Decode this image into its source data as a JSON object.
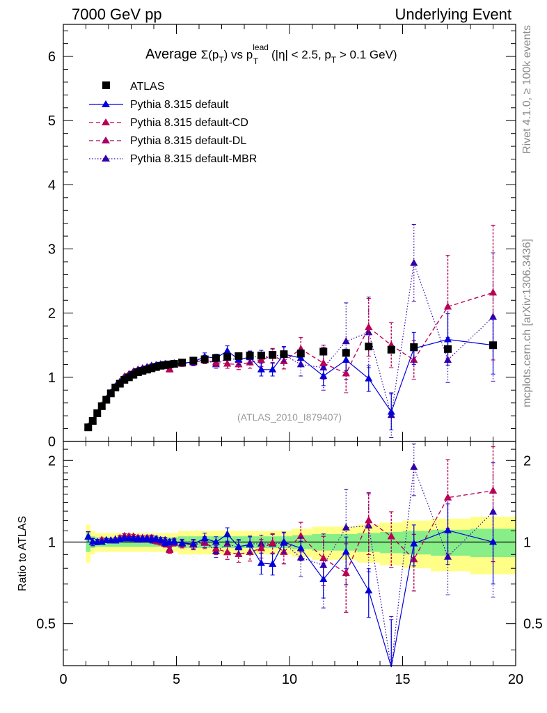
{
  "header": {
    "left": "7000 GeV pp",
    "right": "Underlying Event"
  },
  "side": {
    "rivet": "Rivet 4.1.0, ≥ 100k events",
    "mcplots": "mcplots.cern.ch [arXiv:1306.3436]"
  },
  "title": {
    "prefix": "Average ",
    "sigma": "Σ(p",
    "sigma_sub": "T",
    "sigma_close": ")",
    "vs": " vs p",
    "lead_sup": "lead",
    "lead_sub": "T",
    "cuts_a": " (|η| < 2.5, p",
    "cuts_sub": "T",
    "cuts_b": " > 0.1 GeV)"
  },
  "watermark": "(ATLAS_2010_I879407)",
  "ratio_ylabel": "Ratio to ATLAS",
  "colors": {
    "atlas": "#000000",
    "default": "#0000dd",
    "cd": "#bb0055",
    "dl": "#aa0066",
    "mbr": "#3300aa",
    "band_outer": "#ffff88",
    "band_inner": "#88ee88"
  },
  "chart_data": {
    "type": "scatter",
    "xlim": [
      0,
      20
    ],
    "xticks": [
      "0",
      "5",
      "10",
      "15",
      "20"
    ],
    "main": {
      "ylim": [
        0,
        6.5
      ],
      "yticks": [
        "0",
        "1",
        "2",
        "3",
        "4",
        "5",
        "6"
      ]
    },
    "ratio": {
      "ylim": [
        0.35,
        2.35
      ],
      "yticks": [
        "0.5",
        "1",
        "2"
      ]
    },
    "legend": [
      "ATLAS",
      "Pythia 8.315 default",
      "Pythia 8.315 default-CD",
      "Pythia 8.315 default-DL",
      "Pythia 8.315 default-MBR"
    ],
    "x": [
      1.1,
      1.3,
      1.5,
      1.7,
      1.9,
      2.1,
      2.3,
      2.5,
      2.7,
      2.9,
      3.1,
      3.3,
      3.5,
      3.7,
      3.9,
      4.1,
      4.3,
      4.5,
      4.7,
      4.9,
      5.25,
      5.75,
      6.25,
      6.75,
      7.25,
      7.75,
      8.25,
      8.75,
      9.25,
      9.75,
      10.5,
      11.5,
      12.5,
      13.5,
      14.5,
      15.5,
      17.0,
      19.0
    ],
    "atlas": [
      0.22,
      0.32,
      0.44,
      0.55,
      0.65,
      0.75,
      0.84,
      0.9,
      0.96,
      1.0,
      1.04,
      1.08,
      1.1,
      1.12,
      1.14,
      1.16,
      1.18,
      1.19,
      1.2,
      1.21,
      1.23,
      1.26,
      1.28,
      1.3,
      1.32,
      1.33,
      1.34,
      1.34,
      1.35,
      1.36,
      1.37,
      1.4,
      1.38,
      1.48,
      1.43,
      1.47,
      1.44,
      1.5
    ],
    "atlas_band": [
      0.08,
      0.05,
      0.04,
      0.04,
      0.04,
      0.04,
      0.04,
      0.04,
      0.04,
      0.04,
      0.04,
      0.04,
      0.04,
      0.04,
      0.04,
      0.04,
      0.04,
      0.04,
      0.04,
      0.04,
      0.05,
      0.05,
      0.05,
      0.05,
      0.05,
      0.05,
      0.05,
      0.05,
      0.05,
      0.05,
      0.06,
      0.07,
      0.07,
      0.08,
      0.09,
      0.1,
      0.11,
      0.12
    ],
    "series": [
      {
        "name": "Pythia 8.315 default",
        "values": [
          0.23,
          0.32,
          0.44,
          0.55,
          0.66,
          0.76,
          0.85,
          0.92,
          0.99,
          1.03,
          1.07,
          1.11,
          1.13,
          1.15,
          1.17,
          1.19,
          1.2,
          1.18,
          1.2,
          1.21,
          1.22,
          1.24,
          1.32,
          1.3,
          1.41,
          1.28,
          1.31,
          1.12,
          1.12,
          1.36,
          1.3,
          1.02,
          1.27,
          0.98,
          0.46,
          1.45,
          1.59,
          1.5
        ],
        "errors": [
          0.01,
          0.01,
          0.01,
          0.01,
          0.01,
          0.01,
          0.01,
          0.02,
          0.02,
          0.02,
          0.02,
          0.02,
          0.02,
          0.02,
          0.03,
          0.03,
          0.03,
          0.03,
          0.03,
          0.03,
          0.04,
          0.05,
          0.06,
          0.06,
          0.08,
          0.08,
          0.09,
          0.1,
          0.1,
          0.12,
          0.13,
          0.15,
          0.17,
          0.2,
          0.28,
          0.25,
          0.4,
          0.45
        ]
      },
      {
        "name": "Pythia 8.315 default-CD",
        "values": [
          0.23,
          0.32,
          0.44,
          0.56,
          0.66,
          0.76,
          0.85,
          0.93,
          1.01,
          1.05,
          1.09,
          1.12,
          1.14,
          1.16,
          1.18,
          1.17,
          1.18,
          1.17,
          1.12,
          1.2,
          1.21,
          1.23,
          1.27,
          1.23,
          1.21,
          1.2,
          1.23,
          1.27,
          1.34,
          1.25,
          1.44,
          1.22,
          1.06,
          1.78,
          1.5,
          1.27,
          2.1,
          2.32
        ],
        "errors": [
          0.01,
          0.01,
          0.01,
          0.01,
          0.01,
          0.01,
          0.01,
          0.02,
          0.02,
          0.02,
          0.02,
          0.02,
          0.02,
          0.02,
          0.03,
          0.03,
          0.03,
          0.03,
          0.03,
          0.03,
          0.04,
          0.05,
          0.06,
          0.06,
          0.07,
          0.08,
          0.09,
          0.1,
          0.11,
          0.12,
          0.18,
          0.25,
          0.3,
          0.45,
          0.35,
          0.3,
          0.8,
          1.05
        ]
      },
      {
        "name": "Pythia 8.315 default-DL",
        "values": [
          0.23,
          0.32,
          0.44,
          0.56,
          0.66,
          0.76,
          0.85,
          0.93,
          1.01,
          1.05,
          1.09,
          1.12,
          1.14,
          1.16,
          1.18,
          1.17,
          1.18,
          1.17,
          1.12,
          1.2,
          1.21,
          1.23,
          1.27,
          1.23,
          1.21,
          1.2,
          1.23,
          1.27,
          1.34,
          1.25,
          1.44,
          1.22,
          1.06,
          1.78,
          1.5,
          1.27,
          2.1,
          2.32
        ],
        "errors": [
          0.01,
          0.01,
          0.01,
          0.01,
          0.01,
          0.01,
          0.01,
          0.02,
          0.02,
          0.02,
          0.02,
          0.02,
          0.02,
          0.02,
          0.03,
          0.03,
          0.03,
          0.03,
          0.03,
          0.03,
          0.04,
          0.05,
          0.06,
          0.06,
          0.07,
          0.08,
          0.09,
          0.1,
          0.11,
          0.12,
          0.18,
          0.25,
          0.3,
          0.45,
          0.35,
          0.3,
          0.8,
          1.05
        ]
      },
      {
        "name": "Pythia 8.315 default-MBR",
        "values": [
          0.23,
          0.32,
          0.44,
          0.55,
          0.66,
          0.76,
          0.86,
          0.93,
          0.99,
          1.03,
          1.07,
          1.1,
          1.12,
          1.15,
          1.16,
          1.18,
          1.2,
          1.21,
          1.13,
          1.22,
          1.21,
          1.24,
          1.28,
          1.2,
          1.3,
          1.27,
          1.32,
          1.32,
          1.33,
          1.35,
          1.2,
          1.15,
          1.56,
          1.7,
          0.41,
          2.78,
          1.27,
          1.94
        ],
        "errors": [
          0.01,
          0.01,
          0.01,
          0.01,
          0.01,
          0.01,
          0.01,
          0.02,
          0.02,
          0.02,
          0.02,
          0.02,
          0.02,
          0.02,
          0.03,
          0.03,
          0.03,
          0.03,
          0.03,
          0.03,
          0.04,
          0.05,
          0.06,
          0.06,
          0.08,
          0.08,
          0.09,
          0.1,
          0.11,
          0.12,
          0.18,
          0.35,
          0.6,
          0.55,
          0.35,
          0.6,
          0.35,
          1.0
        ]
      }
    ]
  }
}
